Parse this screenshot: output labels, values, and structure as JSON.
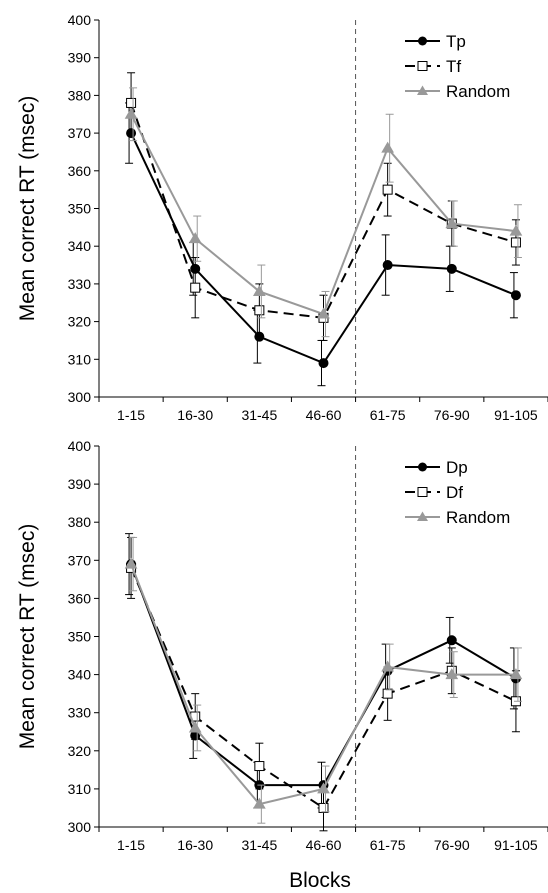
{
  "figure": {
    "xlabel_shared": "Blocks"
  },
  "chart_data": [
    {
      "type": "line",
      "panel": "top",
      "title": "",
      "xlabel": "",
      "ylabel": "Mean correct RT (msec)",
      "ylim": [
        300,
        400
      ],
      "yticks": [
        300,
        310,
        320,
        330,
        340,
        350,
        360,
        370,
        380,
        390,
        400
      ],
      "categories": [
        "1-15",
        "16-30",
        "31-45",
        "46-60",
        "61-75",
        "76-90",
        "91-105"
      ],
      "divider_after_category": "46-60",
      "grid": false,
      "legend": "top-right",
      "series": [
        {
          "name": "Tp",
          "values": [
            370,
            334,
            316,
            309,
            335,
            334,
            327
          ],
          "errors": [
            8,
            7,
            7,
            6,
            8,
            6,
            6
          ],
          "color": "#000000",
          "dash": "solid",
          "marker": "circle"
        },
        {
          "name": "Tf",
          "values": [
            378,
            329,
            323,
            321,
            355,
            346,
            341
          ],
          "errors": [
            8,
            8,
            7,
            6,
            7,
            6,
            6
          ],
          "color": "#000000",
          "dash": "dashed",
          "marker": "square-open"
        },
        {
          "name": "Random",
          "values": [
            375,
            342,
            328,
            322,
            366,
            346,
            344
          ],
          "errors": [
            7,
            6,
            7,
            6,
            9,
            6,
            7
          ],
          "color": "#999999",
          "dash": "solid",
          "marker": "triangle"
        }
      ]
    },
    {
      "type": "line",
      "panel": "bottom",
      "title": "",
      "xlabel": "Blocks",
      "ylabel": "Mean correct RT (msec)",
      "ylim": [
        300,
        400
      ],
      "yticks": [
        300,
        310,
        320,
        330,
        340,
        350,
        360,
        370,
        380,
        390,
        400
      ],
      "categories": [
        "1-15",
        "16-30",
        "31-45",
        "46-60",
        "61-75",
        "76-90",
        "91-105"
      ],
      "divider_after_category": "46-60",
      "grid": false,
      "legend": "top-right",
      "series": [
        {
          "name": "Dp",
          "values": [
            369,
            324,
            311,
            311,
            341,
            349,
            339
          ],
          "errors": [
            8,
            6,
            6,
            6,
            7,
            6,
            8
          ],
          "color": "#000000",
          "dash": "solid",
          "marker": "circle"
        },
        {
          "name": "Df",
          "values": [
            368,
            329,
            316,
            305,
            335,
            341,
            333
          ],
          "errors": [
            8,
            6,
            6,
            6,
            7,
            6,
            8
          ],
          "color": "#000000",
          "dash": "dashed",
          "marker": "square-open"
        },
        {
          "name": "Random",
          "values": [
            369,
            326,
            306,
            310,
            342,
            340,
            340
          ],
          "errors": [
            7,
            6,
            5,
            6,
            6,
            6,
            7
          ],
          "color": "#999999",
          "dash": "solid",
          "marker": "triangle"
        }
      ]
    }
  ]
}
